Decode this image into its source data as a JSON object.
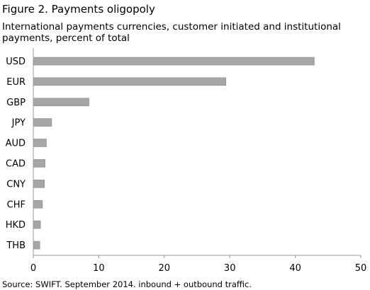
{
  "figure": {
    "title": "Figure 2. Payments oligopoly",
    "subtitle": "International payments currencies, customer initiated and institutional payments, percent of total",
    "source": "Source: SWIFT.  September 2014. inbound + outbound traffic."
  },
  "chart_data": {
    "type": "bar",
    "orientation": "horizontal",
    "categories": [
      "USD",
      "EUR",
      "GBP",
      "JPY",
      "AUD",
      "CAD",
      "CNY",
      "CHF",
      "HKD",
      "THB"
    ],
    "values": [
      42.9,
      29.4,
      8.5,
      2.8,
      2.0,
      1.8,
      1.7,
      1.4,
      1.1,
      1.0
    ],
    "xlim": [
      0,
      50
    ],
    "xticks": [
      0,
      10,
      20,
      30,
      40,
      50
    ],
    "xlabel": "",
    "ylabel": "",
    "grid": false,
    "bar_color": "#a6a6a6",
    "bar_edge_color": "#8c8c8c"
  }
}
